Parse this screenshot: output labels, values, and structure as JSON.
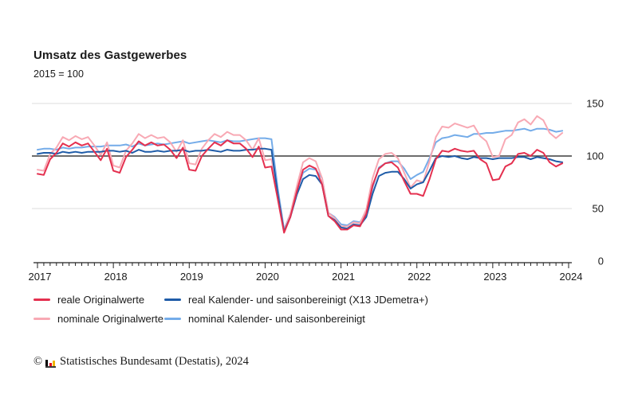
{
  "header": {
    "title": "Umsatz des Gastgewerbes",
    "subtitle": "2015 = 100"
  },
  "colors": {
    "real_original": "#e4304f",
    "nominal_original": "#f8a9b4",
    "real_adjusted": "#1f5ca8",
    "nominal_adjusted": "#74ace9",
    "grid": "#dcdcdc",
    "reference": "#3d3d3d",
    "axis": "#222222",
    "logo_black": "#000000",
    "logo_red": "#e2001a",
    "logo_gold": "#f0b400"
  },
  "chart_data": {
    "type": "line",
    "title": "Umsatz des Gastgewerbes",
    "subtitle": "2015 = 100",
    "x_unit": "month",
    "x_start": "2017-01",
    "x_end": "2023-12",
    "x_tick_labels": [
      "2017",
      "2018",
      "2019",
      "2020",
      "2021",
      "2022",
      "2023",
      "2024"
    ],
    "yticks": [
      0,
      50,
      100,
      150
    ],
    "ylim": [
      0,
      150
    ],
    "gridlines": [
      50,
      150
    ],
    "reference_line": 100,
    "legend_position": "bottom",
    "series": [
      {
        "name": "nominal Kalender- und saisonbereinigt",
        "color": "nominal_adjusted",
        "values": [
          106,
          107,
          107,
          106,
          108,
          107,
          108,
          108,
          109,
          109,
          109,
          110,
          110,
          110,
          111,
          109,
          112,
          110,
          111,
          112,
          111,
          112,
          113,
          114,
          112,
          113,
          114,
          115,
          114,
          113,
          115,
          114,
          114,
          115,
          116,
          117,
          117,
          116,
          69,
          30,
          45,
          67,
          84,
          88,
          87,
          79,
          46,
          42,
          35,
          34,
          38,
          37,
          46,
          70,
          89,
          93,
          95,
          95,
          88,
          78,
          82,
          85,
          98,
          113,
          117,
          118,
          120,
          119,
          118,
          121,
          121,
          122,
          122,
          123,
          124,
          124,
          125,
          126,
          124,
          126,
          126,
          125,
          123,
          124
        ]
      },
      {
        "name": "nominale Originalwerte",
        "color": "nominal_original",
        "values": [
          87,
          86,
          102,
          108,
          118,
          115,
          119,
          116,
          118,
          110,
          101,
          113,
          91,
          89,
          105,
          112,
          121,
          117,
          120,
          117,
          118,
          113,
          104,
          115,
          93,
          92,
          107,
          115,
          121,
          118,
          123,
          120,
          120,
          115,
          106,
          117,
          96,
          97,
          64,
          29,
          45,
          71,
          94,
          98,
          95,
          79,
          46,
          41,
          33,
          33,
          37,
          36,
          49,
          79,
          97,
          102,
          103,
          98,
          84,
          70,
          77,
          75,
          95,
          118,
          128,
          127,
          131,
          129,
          127,
          129,
          119,
          114,
          99,
          100,
          116,
          120,
          132,
          135,
          130,
          138,
          134,
          122,
          117,
          122
        ]
      },
      {
        "name": "real Kalender- und saisonbereinigt (X13 JDemetra+)",
        "color": "real_adjusted",
        "values": [
          102,
          103,
          103,
          102,
          104,
          103,
          104,
          103,
          104,
          104,
          104,
          105,
          105,
          104,
          105,
          103,
          106,
          104,
          104,
          105,
          104,
          105,
          105,
          106,
          104,
          105,
          105,
          106,
          105,
          104,
          106,
          105,
          105,
          106,
          106,
          107,
          107,
          106,
          64,
          28,
          42,
          63,
          78,
          82,
          81,
          73,
          43,
          39,
          32,
          31,
          35,
          34,
          42,
          64,
          81,
          84,
          85,
          85,
          78,
          69,
          73,
          75,
          86,
          98,
          100,
          99,
          100,
          98,
          97,
          99,
          98,
          98,
          97,
          98,
          98,
          98,
          99,
          99,
          97,
          99,
          98,
          97,
          95,
          94
        ]
      },
      {
        "name": "reale Originalwerte",
        "color": "real_original",
        "values": [
          83,
          82,
          97,
          103,
          112,
          109,
          113,
          110,
          112,
          104,
          96,
          107,
          86,
          84,
          99,
          106,
          114,
          110,
          113,
          110,
          111,
          106,
          98,
          108,
          87,
          86,
          100,
          107,
          113,
          110,
          115,
          112,
          112,
          107,
          99,
          109,
          89,
          90,
          59,
          27,
          42,
          66,
          87,
          91,
          88,
          73,
          43,
          38,
          30,
          30,
          34,
          33,
          45,
          72,
          88,
          93,
          94,
          89,
          76,
          64,
          64,
          62,
          78,
          97,
          105,
          104,
          107,
          105,
          104,
          105,
          97,
          93,
          77,
          78,
          90,
          93,
          102,
          103,
          100,
          106,
          103,
          94,
          90,
          93
        ]
      }
    ]
  },
  "footer": {
    "copyright": "©",
    "source": "Statistisches Bundesamt (Destatis), 2024"
  }
}
